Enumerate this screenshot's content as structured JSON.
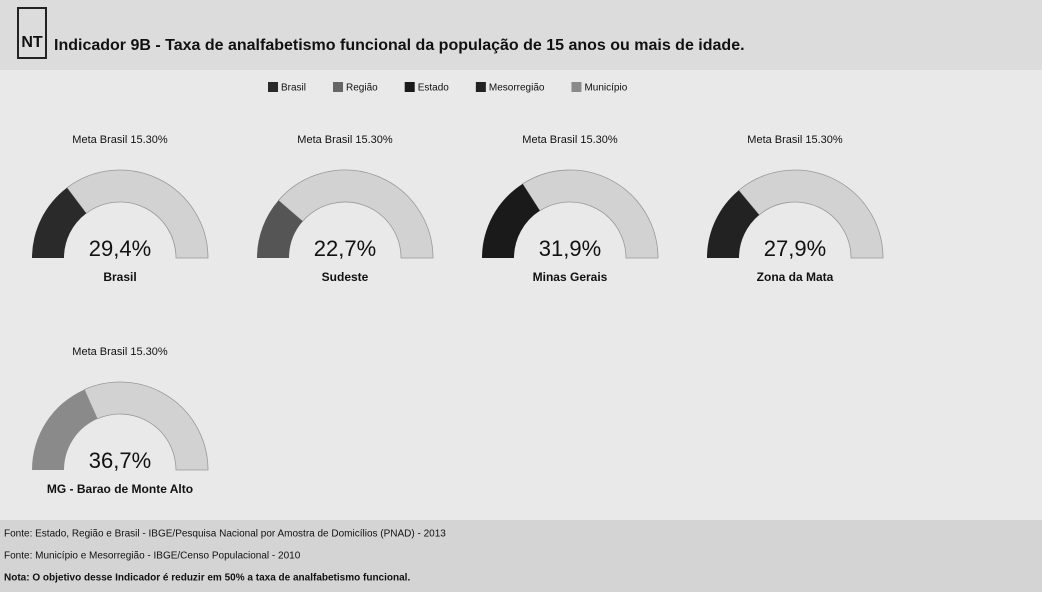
{
  "logo": "NT",
  "title": "Indicador 9B - Taxa de analfabetismo funcional da população de 15 anos ou mais de idade.",
  "legend": [
    {
      "name": "Brasil",
      "color": "#2a2a2a"
    },
    {
      "name": "Região",
      "color": "#666666"
    },
    {
      "name": "Estado",
      "color": "#1a1a1a"
    },
    {
      "name": "Mesorregião",
      "color": "#222222"
    },
    {
      "name": "Município",
      "color": "#8a8a8a"
    }
  ],
  "chart_data": [
    {
      "type": "gauge",
      "title": "Meta Brasil 15.30%",
      "label": "Brasil",
      "values": [
        29.4
      ],
      "value_labels": [
        "29,4%"
      ],
      "color": "#2a2a2a",
      "ylim": [
        0,
        100
      ]
    },
    {
      "type": "gauge",
      "title": "Meta Brasil 15.30%",
      "label": "Sudeste",
      "values": [
        22.7
      ],
      "value_labels": [
        "22,7%"
      ],
      "color": "#555555",
      "ylim": [
        0,
        100
      ]
    },
    {
      "type": "gauge",
      "title": "Meta Brasil 15.30%",
      "label": "Minas Gerais",
      "values": [
        31.9
      ],
      "value_labels": [
        "31,9%"
      ],
      "color": "#1a1a1a",
      "ylim": [
        0,
        100
      ]
    },
    {
      "type": "gauge",
      "title": "Meta Brasil 15.30%",
      "label": "Zona da Mata",
      "values": [
        27.9
      ],
      "value_labels": [
        "27,9%"
      ],
      "color": "#222222",
      "ylim": [
        0,
        100
      ]
    },
    {
      "type": "gauge",
      "title": "Meta Brasil 15.30%",
      "label": "MG - Barao de Monte Alto",
      "values": [
        36.7
      ],
      "value_labels": [
        "36,7%"
      ],
      "color": "#8a8a8a",
      "ylim": [
        0,
        100
      ]
    }
  ],
  "notes": [
    "Fonte: Estado, Região e Brasil - IBGE/Pesquisa Nacional por Amostra de Domicílios (PNAD) - 2013",
    "Fonte: Município e Mesorregião - IBGE/Censo Populacional - 2010",
    "Nota: O objetivo desse Indicador é reduzir em 50% a taxa de analfabetismo funcional."
  ]
}
